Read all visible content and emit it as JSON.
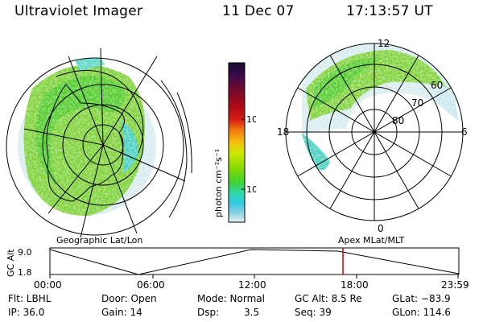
{
  "header": {
    "instrument": "Ultraviolet Imager",
    "date": "11 Dec 07",
    "time": "17:13:57 UT"
  },
  "left_panel": {
    "caption": "Geographic Lat/Lon"
  },
  "right_panel": {
    "caption": "Apex MLat/MLT",
    "mlt_labels": {
      "top": "12",
      "left": "18",
      "right": "6",
      "bottom": "0"
    },
    "lat_labels": [
      "60",
      "70",
      "80"
    ]
  },
  "colorbar": {
    "unit_label": "photon cm⁻²s⁻¹",
    "ticks": [
      "100",
      "10"
    ],
    "colors": [
      "#1a0a33",
      "#3a0a4a",
      "#7a0a2a",
      "#b00a18",
      "#d82010",
      "#f07810",
      "#f4c010",
      "#cce800",
      "#88d800",
      "#40d030",
      "#30d8b0",
      "#30c8e0",
      "#8ad0e0",
      "#e8f0f4"
    ]
  },
  "timeline": {
    "axis_label": "GC Alt",
    "y_ticks": [
      "9.0",
      "1.8"
    ],
    "x_ticks": [
      "00:00",
      "06:00",
      "12:00",
      "18:00",
      "23:59"
    ],
    "marker_color": "#d00000"
  },
  "info": {
    "flt": "Flt: LBHL",
    "ip": "IP: 36.0",
    "door": "Door: Open",
    "gain": "Gain: 14",
    "mode": "Mode: Normal",
    "dsp_label": "Dsp:",
    "dsp_value": "3.5",
    "gcalt": "GC Alt: 8.5 Re",
    "seq": "Seq: 39",
    "glat": "GLat: −83.9",
    "glon": "GLon: 114.6"
  }
}
